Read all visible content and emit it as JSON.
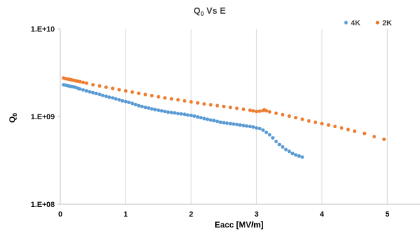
{
  "chart_data": {
    "type": "scatter",
    "title_main": "Q",
    "title_sub": "0",
    "title_rest": " Vs E",
    "xlabel": "Eacc [MV/m]",
    "ylabel_main": "Q",
    "ylabel_sub": "0",
    "x_scale": "linear",
    "y_scale": "log",
    "xlim": [
      0,
      5.5
    ],
    "ylim": [
      100000000,
      10000000000
    ],
    "x_ticks": [
      0,
      1,
      2,
      3,
      4,
      5
    ],
    "x_tick_labels": [
      "0",
      "1",
      "2",
      "3",
      "4",
      "5"
    ],
    "y_ticks": [
      100000000,
      1000000000,
      10000000000
    ],
    "y_tick_labels": [
      "1.E+08",
      "1.E+09",
      "1.E+10"
    ],
    "grid": "vertical major",
    "legend_position": "top-right",
    "series": [
      {
        "name": "4K",
        "color": "#5B9BD5",
        "x": [
          0.05,
          0.08,
          0.11,
          0.14,
          0.17,
          0.2,
          0.23,
          0.27,
          0.3,
          0.35,
          0.4,
          0.45,
          0.5,
          0.55,
          0.6,
          0.65,
          0.7,
          0.75,
          0.8,
          0.85,
          0.9,
          0.95,
          1.0,
          1.05,
          1.1,
          1.15,
          1.2,
          1.25,
          1.3,
          1.35,
          1.4,
          1.45,
          1.5,
          1.55,
          1.6,
          1.65,
          1.7,
          1.75,
          1.8,
          1.85,
          1.9,
          1.95,
          2.0,
          2.05,
          2.1,
          2.15,
          2.2,
          2.25,
          2.3,
          2.35,
          2.4,
          2.45,
          2.5,
          2.55,
          2.6,
          2.65,
          2.7,
          2.75,
          2.8,
          2.85,
          2.9,
          2.95,
          3.0,
          3.05,
          3.1,
          3.15,
          3.2,
          3.25,
          3.3,
          3.35,
          3.4,
          3.45,
          3.5,
          3.55,
          3.6,
          3.65,
          3.7
        ],
        "y": [
          2300000000,
          2280000000,
          2250000000,
          2220000000,
          2200000000,
          2180000000,
          2150000000,
          2100000000,
          2060000000,
          2010000000,
          1960000000,
          1910000000,
          1870000000,
          1830000000,
          1790000000,
          1740000000,
          1700000000,
          1660000000,
          1630000000,
          1590000000,
          1550000000,
          1510000000,
          1480000000,
          1450000000,
          1410000000,
          1370000000,
          1330000000,
          1300000000,
          1270000000,
          1250000000,
          1220000000,
          1200000000,
          1180000000,
          1160000000,
          1140000000,
          1120000000,
          1110000000,
          1100000000,
          1080000000,
          1070000000,
          1060000000,
          1040000000,
          1030000000,
          1010000000,
          990000000,
          970000000,
          950000000,
          930000000,
          910000000,
          900000000,
          880000000,
          860000000,
          850000000,
          840000000,
          830000000,
          820000000,
          810000000,
          800000000,
          790000000,
          780000000,
          770000000,
          760000000,
          740000000,
          730000000,
          700000000,
          660000000,
          620000000,
          570000000,
          520000000,
          480000000,
          450000000,
          420000000,
          400000000,
          380000000,
          365000000,
          355000000,
          345000000
        ]
      },
      {
        "name": "2K",
        "color": "#ED7D31",
        "x": [
          0.05,
          0.08,
          0.11,
          0.14,
          0.17,
          0.2,
          0.23,
          0.26,
          0.3,
          0.35,
          0.4,
          0.5,
          0.6,
          0.7,
          0.8,
          0.9,
          1.0,
          1.1,
          1.2,
          1.3,
          1.4,
          1.5,
          1.6,
          1.7,
          1.8,
          1.9,
          2.0,
          2.1,
          2.2,
          2.3,
          2.4,
          2.5,
          2.6,
          2.7,
          2.8,
          2.9,
          2.95,
          3.0,
          3.05,
          3.1,
          3.12,
          3.15,
          3.2,
          3.3,
          3.4,
          3.5,
          3.6,
          3.7,
          3.8,
          3.9,
          4.0,
          4.1,
          4.2,
          4.3,
          4.4,
          4.5,
          4.65,
          4.8,
          4.95
        ],
        "y": [
          2750000000,
          2700000000,
          2680000000,
          2650000000,
          2620000000,
          2590000000,
          2560000000,
          2530000000,
          2500000000,
          2450000000,
          2400000000,
          2300000000,
          2230000000,
          2160000000,
          2090000000,
          2020000000,
          1960000000,
          1900000000,
          1840000000,
          1780000000,
          1730000000,
          1680000000,
          1630000000,
          1590000000,
          1550000000,
          1510000000,
          1470000000,
          1430000000,
          1390000000,
          1360000000,
          1330000000,
          1300000000,
          1270000000,
          1240000000,
          1210000000,
          1180000000,
          1160000000,
          1140000000,
          1150000000,
          1170000000,
          1190000000,
          1160000000,
          1130000000,
          1090000000,
          1050000000,
          1010000000,
          970000000,
          930000000,
          890000000,
          860000000,
          830000000,
          800000000,
          770000000,
          740000000,
          710000000,
          680000000,
          640000000,
          590000000,
          550000000
        ]
      }
    ]
  }
}
